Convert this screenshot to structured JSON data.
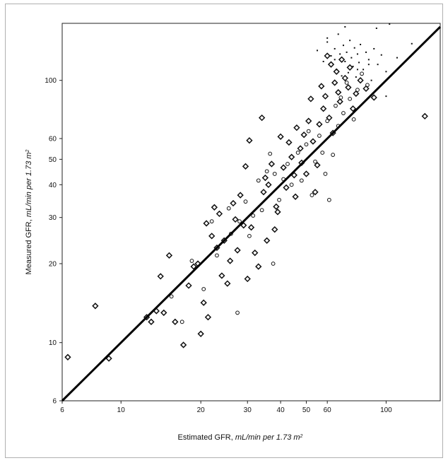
{
  "chart_data": {
    "type": "scatter",
    "title": "",
    "xlabel": "Estimated GFR, mL/min per 1.73 m²",
    "ylabel": "Measured GFR, mL/min per 1.73 m²",
    "xlabel_plain": "Estimated GFR, ",
    "xlabel_italic": "mL/min per 1.73 m",
    "xlabel_sup": "2",
    "ylabel_plain": "Measured GFR, ",
    "ylabel_italic": "mL/min per 1.73 m",
    "ylabel_sup": "2",
    "x_scale": "log",
    "y_scale": "log",
    "xlim": [
      6,
      160
    ],
    "ylim": [
      6,
      165
    ],
    "x_ticks": [
      6,
      10,
      20,
      30,
      40,
      50,
      60,
      100
    ],
    "x_tick_labels": [
      "6",
      "10",
      "20",
      "30",
      "40",
      "50",
      "60",
      "100"
    ],
    "y_ticks": [
      6,
      10,
      20,
      30,
      40,
      50,
      60,
      100
    ],
    "y_tick_labels": [
      "6",
      "10",
      "20",
      "30",
      "40",
      "50",
      "60",
      "100"
    ],
    "grid": false,
    "legend": "none",
    "reference_line": {
      "type": "identity",
      "x": [
        6,
        160
      ],
      "y": [
        6,
        160
      ]
    },
    "series": [
      {
        "marker": "diamond",
        "points": [
          [
            6.3,
            8.8
          ],
          [
            8.0,
            13.8
          ],
          [
            9.0,
            8.7
          ],
          [
            12.5,
            12.5
          ],
          [
            13.0,
            12.0
          ],
          [
            13.6,
            13.2
          ],
          [
            14.1,
            17.9
          ],
          [
            14.5,
            13.0
          ],
          [
            15.2,
            21.5
          ],
          [
            16.0,
            12.0
          ],
          [
            17.2,
            9.8
          ],
          [
            18.0,
            16.5
          ],
          [
            18.8,
            19.5
          ],
          [
            19.5,
            20.0
          ],
          [
            20.0,
            10.8
          ],
          [
            20.5,
            14.2
          ],
          [
            21.0,
            28.5
          ],
          [
            21.3,
            12.5
          ],
          [
            22.0,
            25.5
          ],
          [
            22.5,
            32.8
          ],
          [
            23.0,
            23.0
          ],
          [
            23.5,
            31.0
          ],
          [
            24.0,
            18.0
          ],
          [
            24.5,
            24.5
          ],
          [
            25.2,
            16.8
          ],
          [
            25.8,
            20.5
          ],
          [
            26.5,
            34.0
          ],
          [
            27.0,
            29.5
          ],
          [
            27.5,
            22.5
          ],
          [
            28.2,
            36.5
          ],
          [
            29.0,
            28.0
          ],
          [
            29.5,
            47.0
          ],
          [
            30.0,
            17.5
          ],
          [
            30.5,
            59.0
          ],
          [
            31.0,
            27.5
          ],
          [
            32.0,
            22.0
          ],
          [
            33.0,
            19.5
          ],
          [
            34.0,
            72.0
          ],
          [
            34.5,
            37.5
          ],
          [
            35.0,
            42.5
          ],
          [
            35.5,
            24.5
          ],
          [
            36.0,
            40.0
          ],
          [
            37.0,
            48.0
          ],
          [
            38.0,
            27.0
          ],
          [
            38.5,
            33.0
          ],
          [
            39.0,
            31.5
          ],
          [
            40.0,
            61.0
          ],
          [
            41.0,
            46.5
          ],
          [
            42.0,
            39.0
          ],
          [
            43.0,
            58.0
          ],
          [
            44.0,
            51.0
          ],
          [
            45.0,
            43.5
          ],
          [
            45.5,
            36.0
          ],
          [
            46.0,
            66.0
          ],
          [
            47.5,
            55.0
          ],
          [
            48.0,
            48.5
          ],
          [
            49.0,
            62.0
          ],
          [
            50.0,
            44.0
          ],
          [
            51.0,
            70.0
          ],
          [
            52.0,
            85.0
          ],
          [
            53.0,
            58.5
          ],
          [
            54.0,
            37.5
          ],
          [
            55.0,
            47.5
          ],
          [
            56.0,
            68.0
          ],
          [
            57.0,
            95.0
          ],
          [
            58.0,
            78.0
          ],
          [
            59.0,
            87.0
          ],
          [
            60.0,
            124.0
          ],
          [
            61.0,
            72.0
          ],
          [
            62.0,
            115.0
          ],
          [
            63.0,
            63.0
          ],
          [
            64.0,
            98.0
          ],
          [
            65.0,
            108.0
          ],
          [
            66.0,
            90.0
          ],
          [
            67.0,
            83.0
          ],
          [
            68.0,
            120.0
          ],
          [
            70.0,
            102.0
          ],
          [
            72.0,
            94.0
          ],
          [
            73.0,
            112.0
          ],
          [
            75.0,
            78.0
          ],
          [
            77.0,
            89.0
          ],
          [
            80.0,
            100.0
          ],
          [
            84.0,
            93.0
          ],
          [
            90.0,
            86.0
          ],
          [
            140.0,
            73.0
          ]
        ]
      },
      {
        "marker": "circle",
        "points": [
          [
            15.5,
            15.0
          ],
          [
            17.0,
            12.0
          ],
          [
            18.5,
            20.5
          ],
          [
            20.5,
            16.0
          ],
          [
            22.0,
            29.0
          ],
          [
            23.0,
            21.5
          ],
          [
            25.5,
            32.5
          ],
          [
            26.0,
            26.0
          ],
          [
            27.5,
            13.0
          ],
          [
            28.0,
            29.0
          ],
          [
            29.5,
            34.5
          ],
          [
            30.5,
            25.5
          ],
          [
            31.5,
            30.5
          ],
          [
            33.0,
            41.5
          ],
          [
            34.0,
            32.0
          ],
          [
            35.5,
            45.0
          ],
          [
            36.5,
            52.5
          ],
          [
            37.5,
            20.0
          ],
          [
            38.0,
            44.0
          ],
          [
            39.5,
            35.0
          ],
          [
            41.0,
            42.0
          ],
          [
            42.5,
            48.0
          ],
          [
            44.0,
            40.0
          ],
          [
            46.5,
            53.0
          ],
          [
            48.0,
            41.5
          ],
          [
            50.0,
            57.0
          ],
          [
            51.0,
            64.0
          ],
          [
            52.5,
            36.5
          ],
          [
            54.0,
            49.0
          ],
          [
            56.0,
            61.5
          ],
          [
            57.5,
            53.0
          ],
          [
            59.0,
            44.0
          ],
          [
            60.0,
            70.0
          ],
          [
            61.0,
            35.0
          ],
          [
            63.0,
            52.0
          ],
          [
            64.5,
            80.0
          ],
          [
            66.0,
            67.0
          ],
          [
            67.5,
            86.0
          ],
          [
            69.0,
            75.0
          ],
          [
            71.0,
            98.0
          ],
          [
            73.0,
            85.0
          ],
          [
            75.5,
            71.0
          ],
          [
            78.0,
            92.0
          ],
          [
            81.0,
            106.0
          ],
          [
            85.0,
            96.0
          ]
        ]
      },
      {
        "marker": "dot",
        "points": [
          [
            55.0,
            130.0
          ],
          [
            58.0,
            118.0
          ],
          [
            60.0,
            140.0
          ],
          [
            62.0,
            124.0
          ],
          [
            64.0,
            132.0
          ],
          [
            65.0,
            110.0
          ],
          [
            66.0,
            150.0
          ],
          [
            67.0,
            126.0
          ],
          [
            68.0,
            104.0
          ],
          [
            69.0,
            136.0
          ],
          [
            70.0,
            118.0
          ],
          [
            71.0,
            128.0
          ],
          [
            72.0,
            107.0
          ],
          [
            73.0,
            142.0
          ],
          [
            74.0,
            122.0
          ],
          [
            75.0,
            113.0
          ],
          [
            76.0,
            133.0
          ],
          [
            77.0,
            103.0
          ],
          [
            78.0,
            126.0
          ],
          [
            79.0,
            117.0
          ],
          [
            80.0,
            137.0
          ],
          [
            82.0,
            110.0
          ],
          [
            84.0,
            128.0
          ],
          [
            86.0,
            120.0
          ],
          [
            88.0,
            100.0
          ],
          [
            90.0,
            132.0
          ],
          [
            93.0,
            115.0
          ],
          [
            96.0,
            125.0
          ],
          [
            100.0,
            108.0
          ],
          [
            103.0,
            164.0
          ],
          [
            110.0,
            122.0
          ],
          [
            125.0,
            138.0
          ],
          [
            70.0,
            160.0
          ],
          [
            92.0,
            158.0
          ],
          [
            60.0,
            145.0
          ],
          [
            64.0,
            120.0
          ],
          [
            78.0,
            110.0
          ],
          [
            86.0,
            115.0
          ],
          [
            95.0,
            95.0
          ],
          [
            100.0,
            87.0
          ]
        ]
      }
    ]
  }
}
